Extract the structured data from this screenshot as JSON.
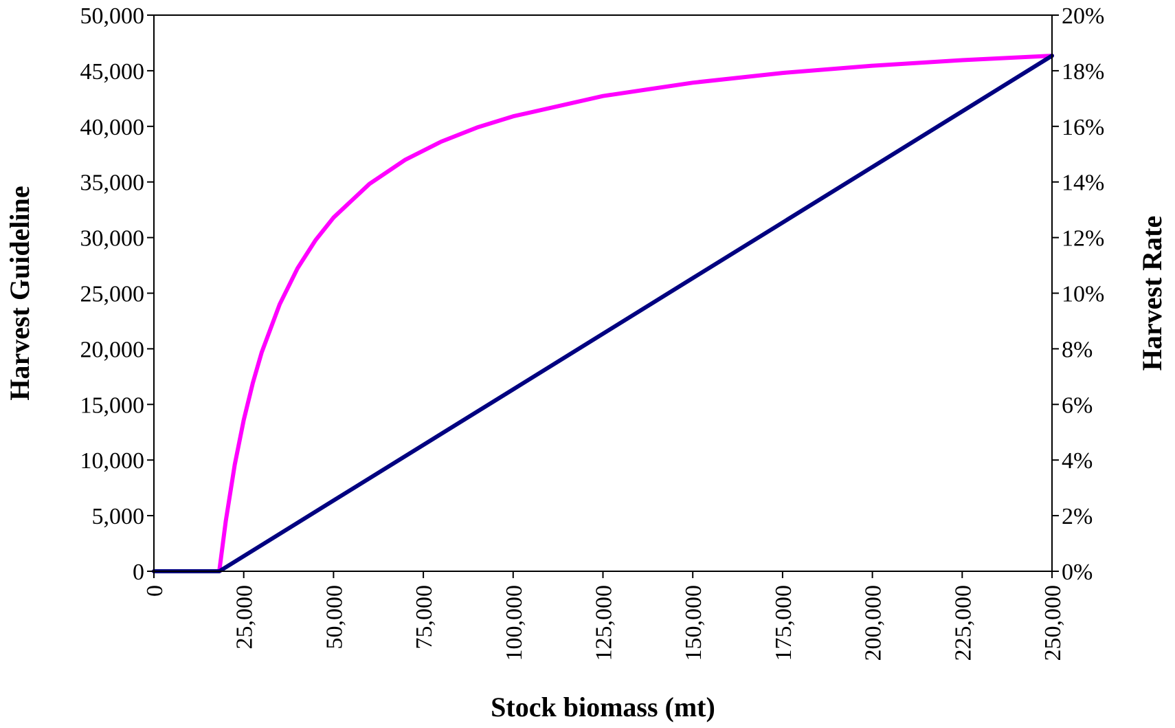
{
  "chart_data": {
    "type": "line",
    "xlabel": "Stock biomass (mt)",
    "ylabel": "Harvest Guideline",
    "y2label": "Harvest Rate",
    "xlim": [
      0,
      250000
    ],
    "ylim": [
      0,
      50000
    ],
    "y2lim": [
      0,
      0.2
    ],
    "x_ticks": [
      0,
      25000,
      50000,
      75000,
      100000,
      125000,
      150000,
      175000,
      200000,
      225000,
      250000
    ],
    "x_tick_labels": [
      "0",
      "25,000",
      "50,000",
      "75,000",
      "100,000",
      "125,000",
      "150,000",
      "175,000",
      "200,000",
      "225,000",
      "250,000"
    ],
    "y_ticks": [
      0,
      5000,
      10000,
      15000,
      20000,
      25000,
      30000,
      35000,
      40000,
      45000,
      50000
    ],
    "y_tick_labels": [
      "0",
      "5,000",
      "10,000",
      "15,000",
      "20,000",
      "25,000",
      "30,000",
      "35,000",
      "40,000",
      "45,000",
      "50,000"
    ],
    "y2_ticks": [
      0,
      0.02,
      0.04,
      0.06,
      0.08,
      0.1,
      0.12,
      0.14,
      0.16,
      0.18,
      0.2
    ],
    "y2_tick_labels": [
      "0%",
      "2%",
      "4%",
      "6%",
      "8%",
      "10%",
      "12%",
      "14%",
      "16%",
      "18%",
      "20%"
    ],
    "grid": false,
    "legend": "none",
    "series": [
      {
        "axis": "right",
        "color": "#ff00ff",
        "x": [
          0,
          18200,
          20000,
          22500,
          25000,
          27500,
          30000,
          35000,
          40000,
          45000,
          50000,
          60000,
          70000,
          80000,
          90000,
          100000,
          125000,
          150000,
          175000,
          200000,
          225000,
          250000
        ],
        "values": [
          0,
          0,
          0.0181,
          0.0383,
          0.0544,
          0.0676,
          0.0787,
          0.096,
          0.109,
          0.1191,
          0.1272,
          0.1393,
          0.148,
          0.1545,
          0.1596,
          0.1636,
          0.1709,
          0.1757,
          0.1792,
          0.1818,
          0.1838,
          0.1854
        ]
      },
      {
        "axis": "left",
        "color": "#000080",
        "x": [
          0,
          18200,
          20000,
          50000,
          100000,
          150000,
          200000,
          250000
        ],
        "values": [
          0,
          0,
          361,
          6359,
          16356,
          26353,
          36349,
          46346
        ]
      }
    ]
  }
}
